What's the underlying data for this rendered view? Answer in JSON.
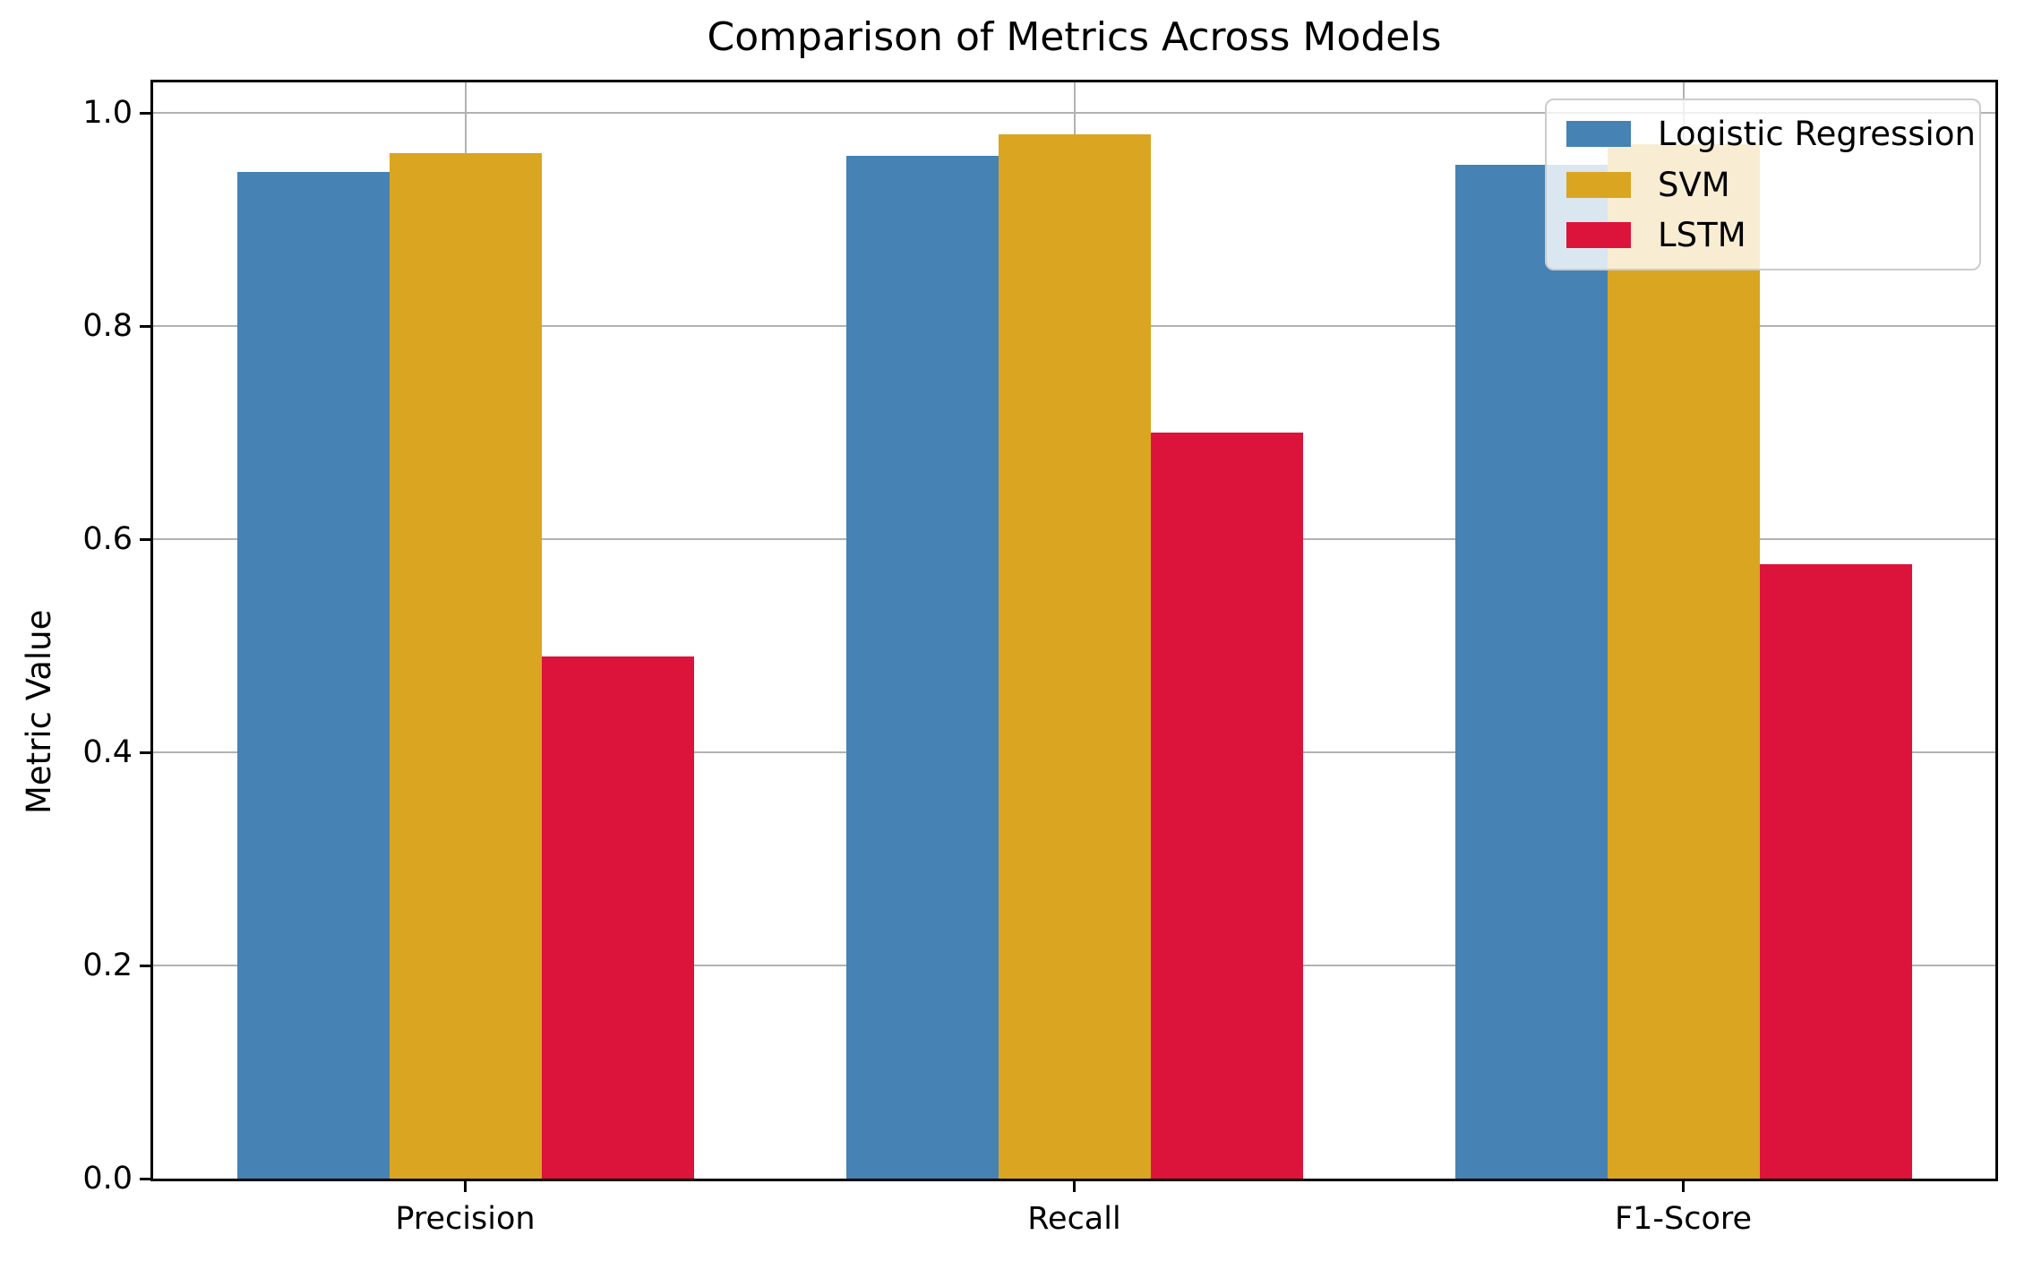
{
  "chart_data": {
    "type": "bar",
    "title": "Comparison of Metrics Across Models",
    "xlabel": "",
    "ylabel": "Metric Value",
    "categories": [
      "Precision",
      "Recall",
      "F1-Score"
    ],
    "series": [
      {
        "name": "Logistic Regression",
        "color": "#4682B4",
        "values": [
          0.945,
          0.96,
          0.952
        ]
      },
      {
        "name": "SVM",
        "color": "#DAA520",
        "values": [
          0.963,
          0.98,
          0.971
        ]
      },
      {
        "name": "LSTM",
        "color": "#DC143C",
        "values": [
          0.49,
          0.7,
          0.577
        ]
      }
    ],
    "ylim": [
      0,
      1.029
    ],
    "yticks": [
      0.0,
      0.2,
      0.4,
      0.6,
      0.8,
      1.0
    ],
    "ytick_labels": [
      "0.0",
      "0.2",
      "0.4",
      "0.6",
      "0.8",
      "1.0"
    ],
    "bar_width": 0.25,
    "bar_offsets": [
      -0.25,
      0,
      0.25
    ],
    "xlim": [
      -0.5125,
      2.5125
    ],
    "grid": true,
    "legend_position": "upper right",
    "grid_color": "#b2b2b2"
  }
}
